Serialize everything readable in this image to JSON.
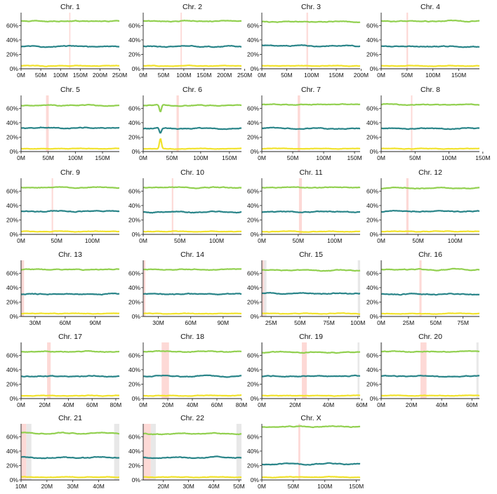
{
  "chart_data": {
    "type": "line",
    "panel_count": 23,
    "y_ticks": [
      "0%",
      "20%",
      "40%",
      "60%"
    ],
    "ylim": [
      0,
      0.72
    ],
    "grid": false,
    "legend": "none",
    "series_colors": {
      "light_green": "#92d050",
      "teal": "#2a8589",
      "yellow": "#f1e22c"
    },
    "band_colors": {
      "centromere": "#fdd9d6",
      "gap": "#e8e8e8"
    },
    "panels": [
      {
        "title": "Chr. 1",
        "xmin": 0,
        "xmax": 249,
        "x_ticks": [
          0,
          50,
          100,
          150,
          200,
          250
        ],
        "x_tick_labels": [
          "0M",
          "50M",
          "100M",
          "150M",
          "200M",
          "250M"
        ],
        "centromere": [
          122,
          125
        ],
        "gaps": [],
        "green": 0.66,
        "teal": 0.31,
        "yellow": 0.04
      },
      {
        "title": "Chr. 2",
        "xmin": 0,
        "xmax": 242,
        "x_ticks": [
          0,
          50,
          100,
          150,
          200,
          250
        ],
        "x_tick_labels": [
          "0M",
          "50M",
          "100M",
          "150M",
          "200M",
          "250M"
        ],
        "centromere": [
          92,
          95
        ],
        "gaps": [],
        "green": 0.66,
        "teal": 0.31,
        "yellow": 0.04
      },
      {
        "title": "Chr. 3",
        "xmin": 0,
        "xmax": 198,
        "x_ticks": [
          0,
          50,
          100,
          150,
          200
        ],
        "x_tick_labels": [
          "0M",
          "50M",
          "100M",
          "150M",
          "200M"
        ],
        "centromere": [
          90,
          93
        ],
        "gaps": [],
        "green": 0.65,
        "teal": 0.32,
        "yellow": 0.04
      },
      {
        "title": "Chr. 4",
        "xmin": 0,
        "xmax": 190,
        "x_ticks": [
          0,
          50,
          100,
          150
        ],
        "x_tick_labels": [
          "0M",
          "50M",
          "100M",
          "150M"
        ],
        "centromere": [
          49,
          52
        ],
        "gaps": [],
        "green": 0.66,
        "teal": 0.31,
        "yellow": 0.04
      },
      {
        "title": "Chr. 5",
        "xmin": 0,
        "xmax": 181,
        "x_ticks": [
          0,
          50,
          100,
          150
        ],
        "x_tick_labels": [
          "0M",
          "50M",
          "100M",
          "150M"
        ],
        "centromere": [
          46,
          51
        ],
        "gaps": [],
        "green": 0.64,
        "teal": 0.33,
        "yellow": 0.04
      },
      {
        "title": "Chr. 6",
        "xmin": 0,
        "xmax": 171,
        "x_ticks": [
          0,
          50,
          100,
          150
        ],
        "x_tick_labels": [
          "0M",
          "50M",
          "100M",
          "150M"
        ],
        "centromere": [
          58,
          62
        ],
        "gaps": [],
        "green": 0.64,
        "teal": 0.32,
        "yellow": 0.04
      },
      {
        "title": "Chr. 7",
        "xmin": 0,
        "xmax": 159,
        "x_ticks": [
          0,
          50,
          100,
          150
        ],
        "x_tick_labels": [
          "0M",
          "50M",
          "100M",
          "150M"
        ],
        "centromere": [
          58,
          62
        ],
        "gaps": [],
        "green": 0.65,
        "teal": 0.32,
        "yellow": 0.04
      },
      {
        "title": "Chr. 8",
        "xmin": 0,
        "xmax": 145,
        "x_ticks": [
          0,
          50,
          100,
          150
        ],
        "x_tick_labels": [
          "0M",
          "50M",
          "100M",
          "150M"
        ],
        "centromere": [
          44,
          46
        ],
        "gaps": [],
        "green": 0.65,
        "teal": 0.32,
        "yellow": 0.04
      },
      {
        "title": "Chr. 9",
        "xmin": 0,
        "xmax": 138,
        "x_ticks": [
          0,
          50,
          100
        ],
        "x_tick_labels": [
          "0M",
          "50M",
          "100M"
        ],
        "centromere": [
          43,
          45
        ],
        "gaps": [],
        "green": 0.65,
        "teal": 0.32,
        "yellow": 0.04
      },
      {
        "title": "Chr. 10",
        "xmin": 0,
        "xmax": 134,
        "x_ticks": [
          0,
          50,
          100
        ],
        "x_tick_labels": [
          "0M",
          "50M",
          "100M"
        ],
        "centromere": [
          39,
          41
        ],
        "gaps": [],
        "green": 0.65,
        "teal": 0.31,
        "yellow": 0.04
      },
      {
        "title": "Chr. 11",
        "xmin": 0,
        "xmax": 135,
        "x_ticks": [
          0,
          50,
          100
        ],
        "x_tick_labels": [
          "0M",
          "50M",
          "100M"
        ],
        "centromere": [
          51,
          55
        ],
        "gaps": [],
        "green": 0.65,
        "teal": 0.31,
        "yellow": 0.04
      },
      {
        "title": "Chr. 12",
        "xmin": 0,
        "xmax": 133,
        "x_ticks": [
          0,
          50,
          100
        ],
        "x_tick_labels": [
          "0M",
          "50M",
          "100M"
        ],
        "centromere": [
          34,
          37
        ],
        "gaps": [],
        "green": 0.64,
        "teal": 0.32,
        "yellow": 0.04
      },
      {
        "title": "Chr. 13",
        "xmin": 16,
        "xmax": 114,
        "x_ticks": [
          30,
          60,
          90
        ],
        "x_tick_labels": [
          "30M",
          "60M",
          "90M"
        ],
        "centromere": [
          16,
          19
        ],
        "gaps": [],
        "green": 0.65,
        "teal": 0.31,
        "yellow": 0.04
      },
      {
        "title": "Chr. 14",
        "xmin": 16,
        "xmax": 107,
        "x_ticks": [
          30,
          60,
          90
        ],
        "x_tick_labels": [
          "30M",
          "60M",
          "90M"
        ],
        "centromere": [
          16,
          18
        ],
        "gaps": [],
        "green": 0.65,
        "teal": 0.31,
        "yellow": 0.04
      },
      {
        "title": "Chr. 15",
        "xmin": 17,
        "xmax": 102,
        "x_ticks": [
          25,
          50,
          75,
          100
        ],
        "x_tick_labels": [
          "25M",
          "50M",
          "75M",
          "100M"
        ],
        "centromere": [
          17,
          19
        ],
        "gaps": [
          [
            19,
            21
          ],
          [
            100,
            102
          ]
        ],
        "green": 0.64,
        "teal": 0.32,
        "yellow": 0.04
      },
      {
        "title": "Chr. 16",
        "xmin": 0,
        "xmax": 90,
        "x_ticks": [
          0,
          25,
          50,
          75
        ],
        "x_tick_labels": [
          "0M",
          "25M",
          "50M",
          "75M"
        ],
        "centromere": [
          35,
          37
        ],
        "gaps": [
          [
            0,
            1
          ]
        ],
        "green": 0.65,
        "teal": 0.31,
        "yellow": 0.04
      },
      {
        "title": "Chr. 17",
        "xmin": 0,
        "xmax": 83,
        "x_ticks": [
          0,
          20,
          40,
          60,
          80
        ],
        "x_tick_labels": [
          "0M",
          "20M",
          "40M",
          "60M",
          "80M"
        ],
        "centromere": [
          22,
          25
        ],
        "gaps": [
          [
            0,
            1
          ]
        ],
        "green": 0.65,
        "teal": 0.31,
        "yellow": 0.04
      },
      {
        "title": "Chr. 18",
        "xmin": 0,
        "xmax": 80,
        "x_ticks": [
          0,
          20,
          40,
          60,
          80
        ],
        "x_tick_labels": [
          "0M",
          "20M",
          "40M",
          "60M",
          "80M"
        ],
        "centromere": [
          15,
          21
        ],
        "gaps": [],
        "green": 0.65,
        "teal": 0.31,
        "yellow": 0.04
      },
      {
        "title": "Chr. 19",
        "xmin": 0,
        "xmax": 59,
        "x_ticks": [
          0,
          20,
          40,
          60
        ],
        "x_tick_labels": [
          "0M",
          "20M",
          "40M",
          "60M"
        ],
        "centromere": [
          24,
          27
        ],
        "gaps": [
          [
            0,
            0.8
          ],
          [
            57.5,
            58.6
          ]
        ],
        "green": 0.64,
        "teal": 0.31,
        "yellow": 0.04
      },
      {
        "title": "Chr. 20",
        "xmin": 0,
        "xmax": 65,
        "x_ticks": [
          0,
          20,
          40,
          60
        ],
        "x_tick_labels": [
          "0M",
          "20M",
          "40M",
          "60M"
        ],
        "centromere": [
          26,
          30
        ],
        "gaps": [
          [
            0,
            0.8
          ],
          [
            63,
            64.4
          ]
        ],
        "green": 0.65,
        "teal": 0.31,
        "yellow": 0.04
      },
      {
        "title": "Chr. 21",
        "xmin": 10,
        "xmax": 48,
        "x_ticks": [
          10,
          20,
          30,
          40
        ],
        "x_tick_labels": [
          "10M",
          "20M",
          "30M",
          "40M"
        ],
        "centromere": [
          10,
          12
        ],
        "gaps": [
          [
            12,
            14
          ],
          [
            46,
            48
          ]
        ],
        "green": 0.65,
        "teal": 0.31,
        "yellow": 0.04
      },
      {
        "title": "Chr. 22",
        "xmin": 12,
        "xmax": 51,
        "x_ticks": [
          20,
          30,
          40,
          50
        ],
        "x_tick_labels": [
          "20M",
          "30M",
          "40M",
          "50M"
        ],
        "centromere": [
          12,
          15
        ],
        "gaps": [
          [
            15,
            17
          ],
          [
            49,
            51
          ]
        ],
        "green": 0.64,
        "teal": 0.31,
        "yellow": 0.04
      },
      {
        "title": "Chr. X",
        "xmin": 0,
        "xmax": 156,
        "x_ticks": [
          0,
          50,
          100,
          150
        ],
        "x_tick_labels": [
          "0M",
          "50M",
          "100M",
          "150M"
        ],
        "centromere": [
          58,
          61
        ],
        "gaps": [],
        "green": 0.74,
        "teal": 0.22,
        "yellow": 0.04
      }
    ]
  }
}
